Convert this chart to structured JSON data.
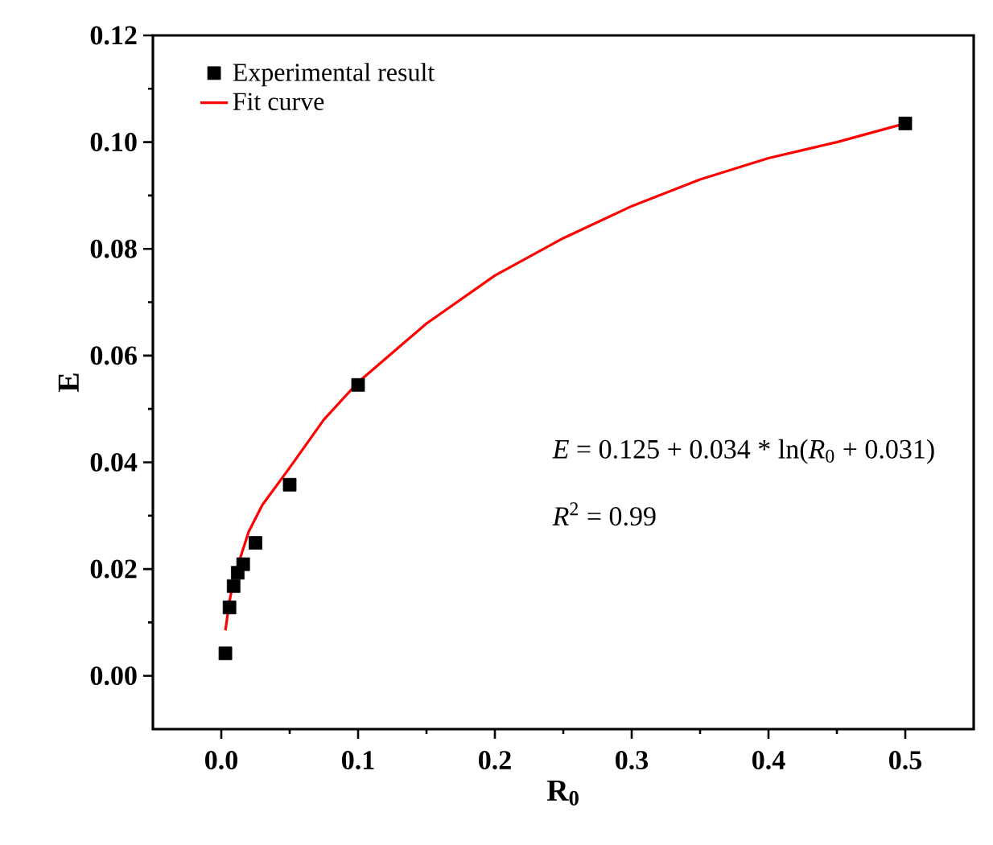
{
  "chart_data": {
    "type": "scatter",
    "xlabel": "R$_{0}$",
    "ylabel": "E",
    "xlim": [
      -0.05,
      0.55
    ],
    "xticks": [
      {
        "value": 0.0,
        "label": "0.0"
      },
      0.1,
      0.2,
      0.3,
      0.4,
      0.5
    ],
    "ylim": [
      -0.01,
      0.12
    ],
    "yticks": [
      {
        "value": 0.0,
        "label": "0.00"
      },
      0.02,
      0.04,
      0.06,
      0.08,
      {
        "value": 0.1,
        "label": "0.10"
      },
      0.12
    ],
    "legend": "top left",
    "grid": false,
    "series": [
      {
        "name": "Experimental result",
        "color": "#000000",
        "marker": "square",
        "x": [
          0.003,
          0.006,
          0.009,
          0.012,
          0.016,
          0.025,
          0.05,
          0.1,
          0.5
        ],
        "values": [
          0.0042,
          0.0128,
          0.0168,
          0.0193,
          0.0209,
          0.0249,
          0.0358,
          0.0545,
          0.1035
        ]
      },
      {
        "name": "Fit curve",
        "type": "line",
        "color": "#ff0000",
        "marker": "none",
        "line_style": "solid",
        "x": [
          0.003,
          0.006,
          0.01,
          0.015,
          0.02,
          0.03,
          0.05,
          0.075,
          0.1,
          0.15,
          0.2,
          0.25,
          0.3,
          0.35,
          0.4,
          0.45,
          0.5
        ],
        "values": [
          0.0085,
          0.014,
          0.019,
          0.023,
          0.027,
          0.032,
          0.039,
          0.048,
          0.055,
          0.066,
          0.075,
          0.082,
          0.088,
          0.093,
          0.097,
          0.1,
          0.1035
        ]
      }
    ],
    "annotations": [
      "*E* = 0.125 + 0.034 * ln(*R*$_{0}$ + 0.031)",
      "*R*$^{2}$ = 0.99"
    ]
  }
}
